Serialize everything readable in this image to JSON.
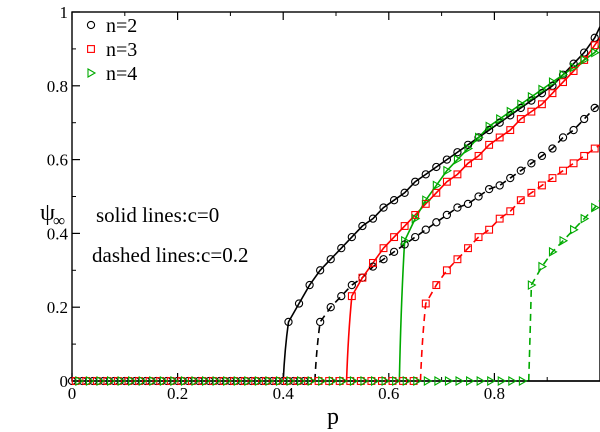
{
  "chart_data": {
    "type": "line",
    "xlabel": "p",
    "ylabel": "ψ",
    "ylabel_subscript": "∞",
    "xlim": [
      0,
      1
    ],
    "ylim": [
      0,
      1
    ],
    "x_ticks": [
      0,
      0.2,
      0.4,
      0.6,
      0.8
    ],
    "x_tick_labels": [
      "0",
      "0.2",
      "0.4",
      "0.6",
      "0.8"
    ],
    "y_ticks": [
      0,
      0.2,
      0.4,
      0.6,
      0.8,
      1
    ],
    "y_tick_labels": [
      "0",
      "0.2",
      "0.4",
      "0.6",
      "0.8",
      "1"
    ],
    "grid": false,
    "legend_position": "top-left",
    "annotations": [
      "solid lines:c=0",
      "dashed lines:c=0.2"
    ],
    "series": [
      {
        "name": "n=2",
        "marker": "circle",
        "color": "#000000",
        "curves": [
          {
            "style": "solid",
            "pc": 0.4,
            "end": [
              1.0,
              0.96
            ],
            "points": [
              [
                0.41,
                0.16
              ],
              [
                0.43,
                0.21
              ],
              [
                0.45,
                0.26
              ],
              [
                0.47,
                0.3
              ],
              [
                0.49,
                0.33
              ],
              [
                0.51,
                0.36
              ],
              [
                0.53,
                0.39
              ],
              [
                0.55,
                0.42
              ],
              [
                0.57,
                0.44
              ],
              [
                0.59,
                0.47
              ],
              [
                0.61,
                0.49
              ],
              [
                0.63,
                0.51
              ],
              [
                0.65,
                0.54
              ],
              [
                0.67,
                0.56
              ],
              [
                0.69,
                0.58
              ],
              [
                0.71,
                0.6
              ],
              [
                0.73,
                0.62
              ],
              [
                0.75,
                0.64
              ],
              [
                0.77,
                0.66
              ],
              [
                0.79,
                0.68
              ],
              [
                0.81,
                0.7
              ],
              [
                0.83,
                0.72
              ],
              [
                0.85,
                0.74
              ],
              [
                0.87,
                0.76
              ],
              [
                0.89,
                0.78
              ],
              [
                0.91,
                0.8
              ],
              [
                0.93,
                0.83
              ],
              [
                0.95,
                0.86
              ],
              [
                0.97,
                0.89
              ],
              [
                0.99,
                0.93
              ]
            ]
          },
          {
            "style": "dashed",
            "pc": 0.46,
            "end": [
              1.0,
              0.75
            ],
            "points": [
              [
                0.47,
                0.16
              ],
              [
                0.49,
                0.2
              ],
              [
                0.51,
                0.23
              ],
              [
                0.53,
                0.26
              ],
              [
                0.55,
                0.28
              ],
              [
                0.57,
                0.31
              ],
              [
                0.59,
                0.33
              ],
              [
                0.61,
                0.35
              ],
              [
                0.63,
                0.37
              ],
              [
                0.65,
                0.39
              ],
              [
                0.67,
                0.41
              ],
              [
                0.69,
                0.43
              ],
              [
                0.71,
                0.45
              ],
              [
                0.73,
                0.47
              ],
              [
                0.75,
                0.48
              ],
              [
                0.77,
                0.5
              ],
              [
                0.79,
                0.52
              ],
              [
                0.81,
                0.53
              ],
              [
                0.83,
                0.55
              ],
              [
                0.85,
                0.57
              ],
              [
                0.87,
                0.59
              ],
              [
                0.89,
                0.61
              ],
              [
                0.91,
                0.63
              ],
              [
                0.93,
                0.66
              ],
              [
                0.95,
                0.68
              ],
              [
                0.97,
                0.71
              ],
              [
                0.99,
                0.74
              ]
            ]
          }
        ]
      },
      {
        "name": "n=3",
        "marker": "square",
        "color": "#ff0000",
        "curves": [
          {
            "style": "solid",
            "pc": 0.52,
            "end": [
              1.0,
              0.93
            ],
            "points": [
              [
                0.53,
                0.23
              ],
              [
                0.55,
                0.28
              ],
              [
                0.57,
                0.32
              ],
              [
                0.59,
                0.36
              ],
              [
                0.61,
                0.39
              ],
              [
                0.63,
                0.42
              ],
              [
                0.65,
                0.45
              ],
              [
                0.67,
                0.48
              ],
              [
                0.69,
                0.51
              ],
              [
                0.71,
                0.54
              ],
              [
                0.73,
                0.56
              ],
              [
                0.75,
                0.59
              ],
              [
                0.77,
                0.61
              ],
              [
                0.79,
                0.64
              ],
              [
                0.81,
                0.66
              ],
              [
                0.83,
                0.68
              ],
              [
                0.85,
                0.71
              ],
              [
                0.87,
                0.73
              ],
              [
                0.89,
                0.75
              ],
              [
                0.91,
                0.78
              ],
              [
                0.93,
                0.81
              ],
              [
                0.95,
                0.84
              ],
              [
                0.97,
                0.87
              ],
              [
                0.99,
                0.91
              ]
            ]
          },
          {
            "style": "dashed",
            "pc": 0.66,
            "end": [
              1.0,
              0.64
            ],
            "points": [
              [
                0.67,
                0.21
              ],
              [
                0.69,
                0.26
              ],
              [
                0.71,
                0.3
              ],
              [
                0.73,
                0.33
              ],
              [
                0.75,
                0.36
              ],
              [
                0.77,
                0.39
              ],
              [
                0.79,
                0.41
              ],
              [
                0.81,
                0.44
              ],
              [
                0.83,
                0.46
              ],
              [
                0.85,
                0.49
              ],
              [
                0.87,
                0.51
              ],
              [
                0.89,
                0.53
              ],
              [
                0.91,
                0.55
              ],
              [
                0.93,
                0.57
              ],
              [
                0.95,
                0.59
              ],
              [
                0.97,
                0.61
              ],
              [
                0.99,
                0.63
              ]
            ]
          }
        ]
      },
      {
        "name": "n=4",
        "marker": "triangle-right",
        "color": "#00aa00",
        "curves": [
          {
            "style": "solid",
            "pc": 0.62,
            "end": [
              1.0,
              0.91
            ],
            "points": [
              [
                0.63,
                0.38
              ],
              [
                0.65,
                0.44
              ],
              [
                0.67,
                0.49
              ],
              [
                0.69,
                0.53
              ],
              [
                0.71,
                0.57
              ],
              [
                0.73,
                0.6
              ],
              [
                0.75,
                0.63
              ],
              [
                0.77,
                0.66
              ],
              [
                0.79,
                0.69
              ],
              [
                0.81,
                0.71
              ],
              [
                0.83,
                0.73
              ],
              [
                0.85,
                0.75
              ],
              [
                0.87,
                0.77
              ],
              [
                0.89,
                0.79
              ],
              [
                0.91,
                0.81
              ],
              [
                0.93,
                0.83
              ],
              [
                0.95,
                0.85
              ],
              [
                0.97,
                0.87
              ],
              [
                0.99,
                0.89
              ]
            ]
          },
          {
            "style": "dashed",
            "pc": 0.865,
            "end": [
              1.0,
              0.49
            ],
            "points": [
              [
                0.87,
                0.26
              ],
              [
                0.89,
                0.31
              ],
              [
                0.91,
                0.35
              ],
              [
                0.93,
                0.38
              ],
              [
                0.95,
                0.41
              ],
              [
                0.97,
                0.44
              ],
              [
                0.99,
                0.47
              ]
            ]
          }
        ]
      }
    ]
  }
}
